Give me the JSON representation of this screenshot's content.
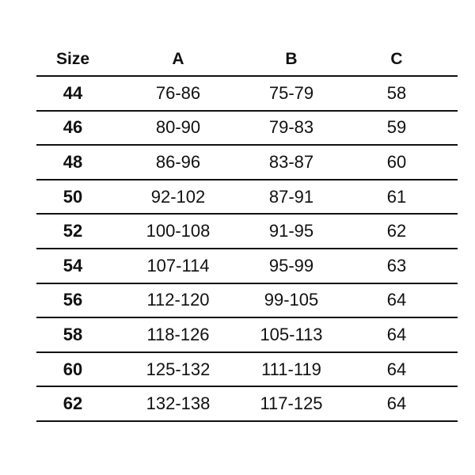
{
  "headers": [
    "Size",
    "A",
    "B",
    "C"
  ],
  "rows": [
    [
      "44",
      "76-86",
      "75-79",
      "58"
    ],
    [
      "46",
      "80-90",
      "79-83",
      "59"
    ],
    [
      "48",
      "86-96",
      "83-87",
      "60"
    ],
    [
      "50",
      "92-102",
      "87-91",
      "61"
    ],
    [
      "52",
      "100-108",
      "91-95",
      "62"
    ],
    [
      "54",
      "107-114",
      "95-99",
      "63"
    ],
    [
      "56",
      "112-120",
      "99-105",
      "64"
    ],
    [
      "58",
      "118-126",
      "105-113",
      "64"
    ],
    [
      "60",
      "125-132",
      "111-119",
      "64"
    ],
    [
      "62",
      "132-138",
      "117-125",
      "64"
    ]
  ]
}
